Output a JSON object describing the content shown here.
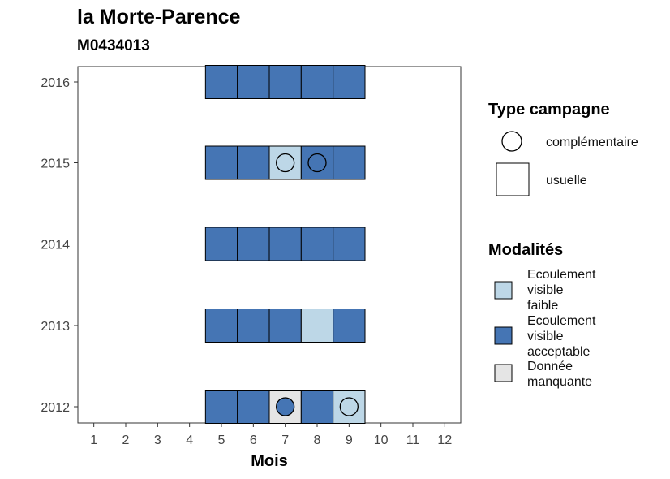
{
  "chart_data": {
    "type": "heatmap",
    "title": "la Morte-Parence",
    "subtitle": "M0434013",
    "xlabel": "Mois",
    "ylabel": "",
    "x_ticks": [
      "1",
      "2",
      "3",
      "4",
      "5",
      "6",
      "7",
      "8",
      "9",
      "10",
      "11",
      "12"
    ],
    "y_ticks": [
      "2012",
      "2013",
      "2014",
      "2015",
      "2016"
    ],
    "xlim": [
      0.5,
      12.5
    ],
    "grid": false,
    "colors": {
      "Ecoulement visible faible": "#bdd7e7",
      "Ecoulement visible acceptable": "#4575b4",
      "Donnée manquante": "#e5e5e5"
    },
    "cells": [
      {
        "year": 2012,
        "month": 5,
        "modalite": "Ecoulement visible acceptable",
        "campagne": "usuelle"
      },
      {
        "year": 2012,
        "month": 6,
        "modalite": "Ecoulement visible acceptable",
        "campagne": "usuelle"
      },
      {
        "year": 2012,
        "month": 7,
        "modalite": "Donnée manquante",
        "campagne": "usuelle"
      },
      {
        "year": 2012,
        "month": 8,
        "modalite": "Ecoulement visible acceptable",
        "campagne": "usuelle"
      },
      {
        "year": 2012,
        "month": 9,
        "modalite": "Ecoulement visible faible",
        "campagne": "usuelle"
      },
      {
        "year": 2013,
        "month": 5,
        "modalite": "Ecoulement visible acceptable",
        "campagne": "usuelle"
      },
      {
        "year": 2013,
        "month": 6,
        "modalite": "Ecoulement visible acceptable",
        "campagne": "usuelle"
      },
      {
        "year": 2013,
        "month": 7,
        "modalite": "Ecoulement visible acceptable",
        "campagne": "usuelle"
      },
      {
        "year": 2013,
        "month": 8,
        "modalite": "Ecoulement visible faible",
        "campagne": "usuelle"
      },
      {
        "year": 2013,
        "month": 9,
        "modalite": "Ecoulement visible acceptable",
        "campagne": "usuelle"
      },
      {
        "year": 2014,
        "month": 5,
        "modalite": "Ecoulement visible acceptable",
        "campagne": "usuelle"
      },
      {
        "year": 2014,
        "month": 6,
        "modalite": "Ecoulement visible acceptable",
        "campagne": "usuelle"
      },
      {
        "year": 2014,
        "month": 7,
        "modalite": "Ecoulement visible acceptable",
        "campagne": "usuelle"
      },
      {
        "year": 2014,
        "month": 8,
        "modalite": "Ecoulement visible acceptable",
        "campagne": "usuelle"
      },
      {
        "year": 2014,
        "month": 9,
        "modalite": "Ecoulement visible acceptable",
        "campagne": "usuelle"
      },
      {
        "year": 2015,
        "month": 5,
        "modalite": "Ecoulement visible acceptable",
        "campagne": "usuelle"
      },
      {
        "year": 2015,
        "month": 6,
        "modalite": "Ecoulement visible acceptable",
        "campagne": "usuelle"
      },
      {
        "year": 2015,
        "month": 7,
        "modalite": "Ecoulement visible faible",
        "campagne": "usuelle"
      },
      {
        "year": 2015,
        "month": 8,
        "modalite": "Ecoulement visible acceptable",
        "campagne": "usuelle"
      },
      {
        "year": 2015,
        "month": 9,
        "modalite": "Ecoulement visible acceptable",
        "campagne": "usuelle"
      },
      {
        "year": 2016,
        "month": 5,
        "modalite": "Ecoulement visible acceptable",
        "campagne": "usuelle"
      },
      {
        "year": 2016,
        "month": 6,
        "modalite": "Ecoulement visible acceptable",
        "campagne": "usuelle"
      },
      {
        "year": 2016,
        "month": 7,
        "modalite": "Ecoulement visible acceptable",
        "campagne": "usuelle"
      },
      {
        "year": 2016,
        "month": 8,
        "modalite": "Ecoulement visible acceptable",
        "campagne": "usuelle"
      },
      {
        "year": 2016,
        "month": 9,
        "modalite": "Ecoulement visible acceptable",
        "campagne": "usuelle"
      }
    ],
    "points": [
      {
        "year": 2012,
        "month": 7,
        "modalite": "Ecoulement visible acceptable",
        "campagne": "complémentaire"
      },
      {
        "year": 2012,
        "month": 9,
        "modalite": "Ecoulement visible faible",
        "campagne": "complémentaire"
      },
      {
        "year": 2015,
        "month": 7,
        "modalite": "Ecoulement visible faible",
        "campagne": "complémentaire"
      },
      {
        "year": 2015,
        "month": 8,
        "modalite": "Ecoulement visible acceptable",
        "campagne": "complémentaire"
      }
    ],
    "legend_type": {
      "title": "Type campagne",
      "items": [
        {
          "label": "complémentaire",
          "shape": "circle"
        },
        {
          "label": "usuelle",
          "shape": "square"
        }
      ]
    },
    "legend_modalites": {
      "title": "Modalités",
      "items": [
        {
          "lines": [
            "Ecoulement",
            "visible",
            "faible"
          ],
          "color": "#bdd7e7"
        },
        {
          "lines": [
            "Ecoulement",
            "visible",
            "acceptable"
          ],
          "color": "#4575b4"
        },
        {
          "lines": [
            "Donnée",
            "manquante"
          ],
          "color": "#e5e5e5"
        }
      ]
    },
    "legend_placement": "right"
  }
}
